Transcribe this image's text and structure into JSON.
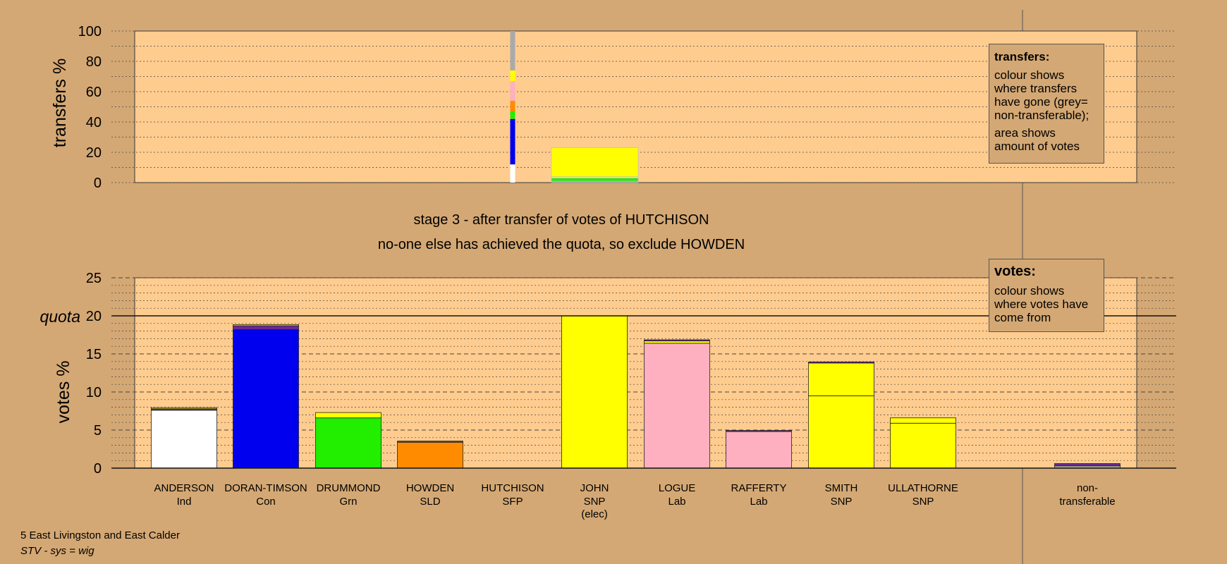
{
  "colors": {
    "background": "#d4a874",
    "panel": "#ffcc8f",
    "grey_nontransferable": "#aaaaaa"
  },
  "footer": {
    "line1": "5 East Livingston and East Calder",
    "line2": "STV - sys = wig"
  },
  "chart_data": [
    {
      "type": "bar",
      "name": "transfers",
      "ylabel": "transfers %",
      "ylim": [
        0,
        100
      ],
      "yticks": [
        "0",
        "20",
        "40",
        "60",
        "80",
        "100"
      ],
      "grid": true,
      "stacked_bars": [
        {
          "category": "HUTCHISON",
          "segments": [
            {
              "value": 12,
              "color": "#ffffff"
            },
            {
              "value": 30,
              "color": "#0000ee"
            },
            {
              "value": 5,
              "color": "#22ee00"
            },
            {
              "value": 7,
              "color": "#ff8c00"
            },
            {
              "value": 13,
              "color": "#ffb0c0"
            },
            {
              "value": 7,
              "color": "#ffff00"
            },
            {
              "value": 26,
              "color": "#aaaaaa"
            }
          ]
        },
        {
          "category": "JOHN",
          "segments": [
            {
              "value": 1,
              "color": "#aaaaaa"
            },
            {
              "value": 2,
              "color": "#22ee00"
            },
            {
              "value": 1,
              "color": "#ffff00"
            },
            {
              "value": 19,
              "color": "#ffff00"
            }
          ]
        }
      ]
    },
    {
      "type": "bar",
      "name": "votes",
      "ylabel": "votes %",
      "ylim": [
        0,
        25
      ],
      "yticks": [
        "0",
        "5",
        "10",
        "15",
        "20",
        "25"
      ],
      "quota": {
        "label": "quota",
        "value": 20
      },
      "grid": true,
      "categories": [
        {
          "name": "ANDERSON",
          "party": "Ind",
          "note": ""
        },
        {
          "name": "DORAN-TIMSON",
          "party": "Con",
          "note": ""
        },
        {
          "name": "DRUMMOND",
          "party": "Grn",
          "note": ""
        },
        {
          "name": "HOWDEN",
          "party": "SLD",
          "note": ""
        },
        {
          "name": "HUTCHISON",
          "party": "SFP",
          "note": ""
        },
        {
          "name": "JOHN",
          "party": "SNP",
          "note": "(elec)"
        },
        {
          "name": "LOGUE",
          "party": "Lab",
          "note": ""
        },
        {
          "name": "RAFFERTY",
          "party": "Lab",
          "note": ""
        },
        {
          "name": "SMITH",
          "party": "SNP",
          "note": ""
        },
        {
          "name": "ULLATHORNE",
          "party": "SNP",
          "note": ""
        },
        {
          "name": "non-",
          "party": "transferable",
          "note": ""
        }
      ],
      "stacked_bars": [
        [
          {
            "value": 7.6,
            "color": "#ffffff"
          },
          {
            "value": 0.2,
            "color": "#6a2a8a"
          },
          {
            "value": 0.15,
            "color": "#ffff00"
          }
        ],
        [
          {
            "value": 18.2,
            "color": "#0000ee"
          },
          {
            "value": 0.5,
            "color": "#6a2a8a"
          },
          {
            "value": 0.15,
            "color": "#ffff00"
          }
        ],
        [
          {
            "value": 6.6,
            "color": "#22ee00"
          },
          {
            "value": 0.7,
            "color": "#ffff00"
          }
        ],
        [
          {
            "value": 3.4,
            "color": "#ff8c00"
          },
          {
            "value": 0.15,
            "color": "#6a2a8a"
          }
        ],
        [],
        [
          {
            "value": 20,
            "color": "#ffff00"
          }
        ],
        [
          {
            "value": 16.4,
            "color": "#ffb0c0"
          },
          {
            "value": 0.3,
            "color": "#ffff00"
          },
          {
            "value": 0.15,
            "color": "#6a2a8a"
          }
        ],
        [
          {
            "value": 4.8,
            "color": "#ffb0c0"
          },
          {
            "value": 0.15,
            "color": "#6a2a8a"
          }
        ],
        [
          {
            "value": 9.5,
            "color": "#ffff00"
          },
          {
            "value": 4.3,
            "color": "#ffff00"
          },
          {
            "value": 0.15,
            "color": "#6a2a8a"
          }
        ],
        [
          {
            "value": 5.9,
            "color": "#ffff00"
          },
          {
            "value": 0.7,
            "color": "#ffff00"
          }
        ],
        [
          {
            "value": 0.3,
            "color": "#aaaaaa"
          },
          {
            "value": 0.3,
            "color": "#6a2a8a"
          }
        ]
      ]
    }
  ],
  "stage_title": "stage 3 - after transfer of votes of HUTCHISON",
  "stage_subtitle": "no-one else has achieved the quota, so exclude HOWDEN",
  "legend_transfers": {
    "heading": "transfers:",
    "para1": "colour shows where transfers have gone (grey= non-transferable);",
    "para2": "area shows amount of votes"
  },
  "legend_votes": {
    "heading": "votes:",
    "para1": "colour shows where votes have come from"
  }
}
